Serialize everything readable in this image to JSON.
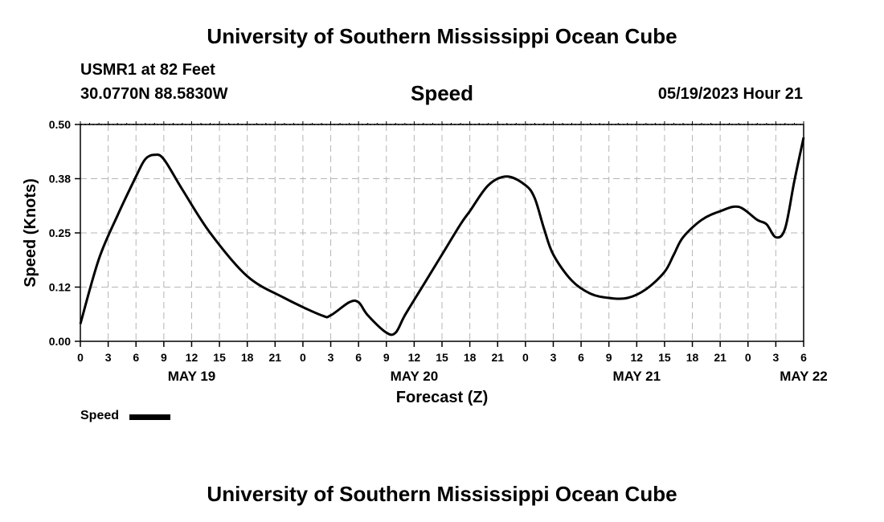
{
  "header": {
    "title": "University of Southern Mississippi Ocean Cube",
    "station": "USMR1 at 82 Feet",
    "coords": "30.0770N  88.5830W",
    "variable": "Speed",
    "timestamp": "05/19/2023 Hour 21"
  },
  "footer": {
    "title": "University of Southern Mississippi Ocean Cube"
  },
  "legend": {
    "label": "Speed"
  },
  "chart_data": {
    "type": "line",
    "title": "Speed",
    "xlabel": "Forecast (Z)",
    "ylabel": "Speed (Knots)",
    "xlim": [
      0,
      78
    ],
    "ylim": [
      0,
      0.5
    ],
    "yticks": [
      0.0,
      0.125,
      0.25,
      0.375,
      0.5
    ],
    "ytick_labels": [
      "0.00",
      "0.12",
      "0.25",
      "0.38",
      "0.50"
    ],
    "xtick_hours": [
      0,
      3,
      6,
      9,
      12,
      15,
      18,
      21,
      24,
      27,
      30,
      33,
      36,
      39,
      42,
      45,
      48,
      51,
      54,
      57,
      60,
      63,
      66,
      69,
      72,
      75,
      78
    ],
    "xtick_labels": [
      "0",
      "3",
      "6",
      "9",
      "12",
      "15",
      "18",
      "21",
      "0",
      "3",
      "6",
      "9",
      "12",
      "15",
      "18",
      "21",
      "0",
      "3",
      "6",
      "9",
      "12",
      "15",
      "18",
      "21",
      "0",
      "3",
      "6"
    ],
    "day_labels": [
      {
        "hour": 12,
        "label": "MAY 19"
      },
      {
        "hour": 36,
        "label": "MAY 20"
      },
      {
        "hour": 60,
        "label": "MAY 21"
      },
      {
        "hour": 78,
        "label": "MAY 22"
      }
    ],
    "grid": true,
    "legend_position": "bottom-left",
    "series": [
      {
        "name": "Speed",
        "color": "#000000",
        "x": [
          0,
          2,
          4,
          6,
          7,
          8,
          9,
          11,
          14,
          18,
          22,
          26,
          27,
          29,
          30,
          31,
          33,
          34,
          35,
          37,
          39,
          41,
          42,
          44,
          46,
          48,
          49,
          50,
          51,
          53,
          55,
          57,
          59,
          61,
          63,
          64,
          65,
          67,
          69,
          71,
          73,
          74,
          75,
          76,
          77,
          78
        ],
        "y": [
          0.04,
          0.19,
          0.29,
          0.38,
          0.42,
          0.43,
          0.42,
          0.35,
          0.25,
          0.15,
          0.1,
          0.06,
          0.06,
          0.09,
          0.09,
          0.06,
          0.02,
          0.02,
          0.06,
          0.13,
          0.2,
          0.27,
          0.3,
          0.36,
          0.38,
          0.36,
          0.33,
          0.26,
          0.2,
          0.14,
          0.11,
          0.1,
          0.1,
          0.12,
          0.16,
          0.2,
          0.24,
          0.28,
          0.3,
          0.31,
          0.28,
          0.27,
          0.24,
          0.26,
          0.37,
          0.47
        ]
      }
    ]
  }
}
